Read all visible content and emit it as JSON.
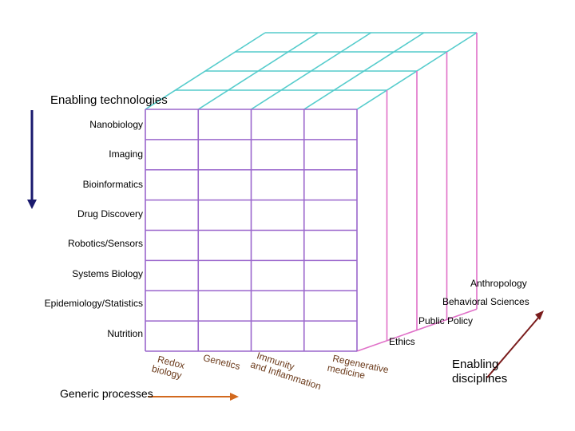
{
  "titles": {
    "enabling_technologies": "Enabling technologies",
    "generic_processes": "Generic processes",
    "enabling_disciplines_line1": "Enabling",
    "enabling_disciplines_line2": "disciplines"
  },
  "technologies": [
    "Nanobiology",
    "Imaging",
    "Bioinformatics",
    "Drug Discovery",
    "Robotics/Sensors",
    "Systems Biology",
    "Epidemiology/Statistics",
    "Nutrition"
  ],
  "processes": [
    {
      "line1": "Redox",
      "line2": "biology"
    },
    {
      "line1": "Genetics",
      "line2": ""
    },
    {
      "line1": "Immunity",
      "line2": "and Inflammation"
    },
    {
      "line1": "Regenerative",
      "line2": "medicine"
    }
  ],
  "disciplines": [
    "Anthropology",
    "Behavioral Sciences",
    "Public Policy",
    "Ethics"
  ],
  "colors": {
    "front_grid": "#9a66cc",
    "top_grid": "#55cccc",
    "side_grid": "#e070c8",
    "process_text": "#6b3a1a",
    "arrow_tech": "#1a1a6e",
    "arrow_process": "#d2691e",
    "arrow_discipline": "#7a1c1c"
  }
}
